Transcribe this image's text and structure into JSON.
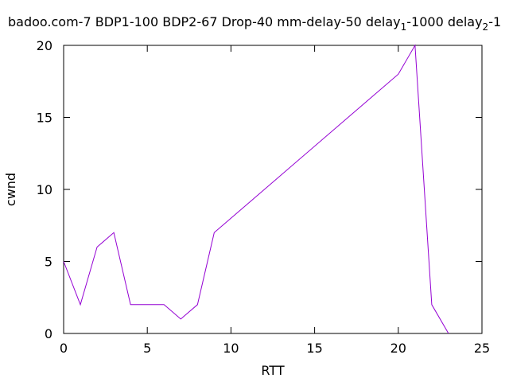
{
  "chart_data": {
    "type": "line",
    "title": {
      "part1": "badoo.com-7 BDP1-100 BDP2-67 Drop-40 mm-delay-50 delay",
      "sub1": "1",
      "part2": "-1000 delay",
      "sub2": "2",
      "part3": "-1"
    },
    "xlabel": "RTT",
    "ylabel": "cwnd",
    "xlim": [
      0,
      25
    ],
    "ylim": [
      0,
      20
    ],
    "xticks": [
      0,
      5,
      10,
      15,
      20,
      25
    ],
    "yticks": [
      0,
      5,
      10,
      15,
      20
    ],
    "grid": false,
    "legend": "none",
    "series": [
      {
        "color": "#9400d3",
        "x": [
          0,
          1,
          2,
          3,
          4,
          5,
          6,
          7,
          8,
          9,
          20,
          21,
          22,
          23
        ],
        "y": [
          5,
          2,
          6,
          7,
          2,
          2,
          2,
          1,
          2,
          7,
          18,
          20,
          2,
          0
        ]
      }
    ]
  }
}
